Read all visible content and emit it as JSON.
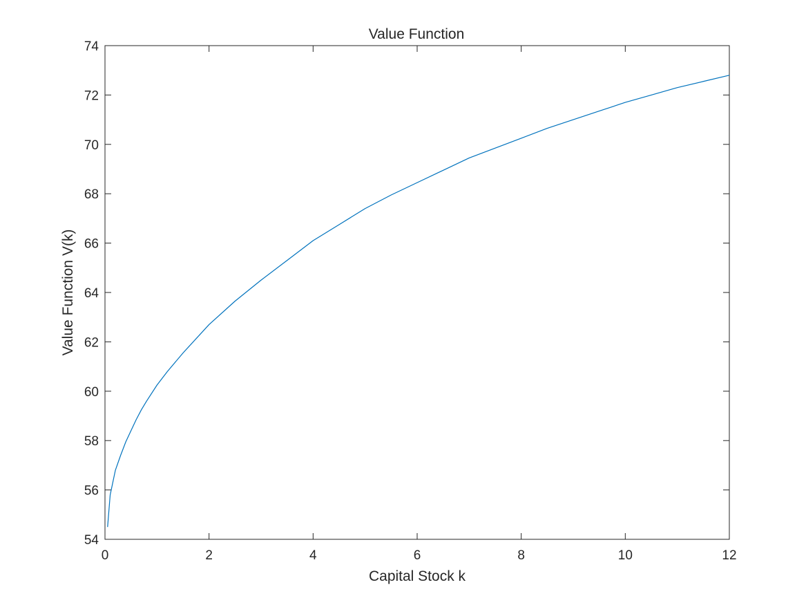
{
  "chart_data": {
    "type": "line",
    "title": "Value Function",
    "xlabel": "Capital Stock k",
    "ylabel": "Value Function V(k)",
    "xlim": [
      0,
      12
    ],
    "ylim": [
      54,
      74
    ],
    "xticks": [
      0,
      2,
      4,
      6,
      8,
      10,
      12
    ],
    "yticks": [
      54,
      56,
      58,
      60,
      62,
      64,
      66,
      68,
      70,
      72,
      74
    ],
    "xtick_labels": [
      "0",
      "2",
      "4",
      "6",
      "8",
      "10",
      "12"
    ],
    "ytick_labels": [
      "54",
      "56",
      "58",
      "60",
      "62",
      "64",
      "66",
      "68",
      "70",
      "72",
      "74"
    ],
    "grid": false,
    "series": [
      {
        "color": "#0072BD",
        "x": [
          0.05,
          0.1,
          0.15,
          0.2,
          0.3,
          0.4,
          0.5,
          0.6,
          0.7,
          0.8,
          1.0,
          1.2,
          1.5,
          2.0,
          2.5,
          3.0,
          3.5,
          4.0,
          4.5,
          5.0,
          5.5,
          6.0,
          6.5,
          7.0,
          7.5,
          8.0,
          8.5,
          9.0,
          9.5,
          10.0,
          10.5,
          11.0,
          11.5,
          12.0
        ],
        "y": [
          54.5,
          55.8,
          56.3,
          56.8,
          57.4,
          57.95,
          58.4,
          58.85,
          59.25,
          59.6,
          60.25,
          60.8,
          61.55,
          62.7,
          63.65,
          64.5,
          65.3,
          66.1,
          66.75,
          67.4,
          67.95,
          68.45,
          68.95,
          69.45,
          69.85,
          70.25,
          70.65,
          71.0,
          71.35,
          71.7,
          72.0,
          72.3,
          72.55,
          72.8
        ]
      }
    ]
  }
}
